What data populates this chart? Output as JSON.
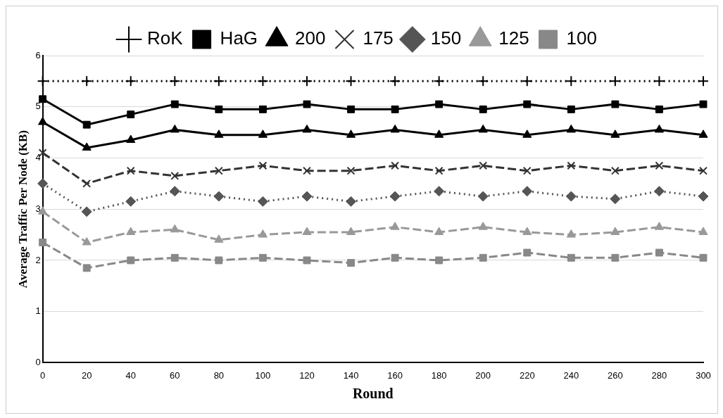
{
  "chart_data": {
    "type": "line",
    "xlabel": "Round",
    "ylabel": "Average Traffic Per Node (KB)",
    "x": [
      0,
      20,
      40,
      60,
      80,
      100,
      120,
      140,
      160,
      180,
      200,
      220,
      240,
      260,
      280,
      300
    ],
    "xlim": [
      0,
      300
    ],
    "xticks": [
      0,
      20,
      40,
      60,
      80,
      100,
      120,
      140,
      160,
      180,
      200,
      220,
      240,
      260,
      280,
      300
    ],
    "ylim": [
      0,
      6
    ],
    "yticks": [
      0,
      1,
      2,
      3,
      4,
      5,
      6
    ],
    "grid": "y",
    "legend": "top",
    "series": [
      {
        "name": "RoK",
        "color": "#000000",
        "marker": "cross",
        "line_style": "dotted",
        "values": [
          5.5,
          5.5,
          5.5,
          5.5,
          5.5,
          5.5,
          5.5,
          5.5,
          5.5,
          5.5,
          5.5,
          5.5,
          5.5,
          5.5,
          5.5,
          5.5
        ]
      },
      {
        "name": "HaG",
        "color": "#000000",
        "marker": "square",
        "line_style": "solid",
        "values": [
          5.15,
          4.65,
          4.85,
          5.05,
          4.95,
          4.95,
          5.05,
          4.95,
          4.95,
          5.05,
          4.95,
          5.05,
          4.95,
          5.05,
          4.95,
          5.05
        ]
      },
      {
        "name": "200",
        "color": "#000000",
        "marker": "triangle",
        "line_style": "solid",
        "values": [
          4.7,
          4.2,
          4.35,
          4.55,
          4.45,
          4.45,
          4.55,
          4.45,
          4.55,
          4.45,
          4.55,
          4.45,
          4.55,
          4.45,
          4.55,
          4.45
        ]
      },
      {
        "name": "175",
        "color": "#333333",
        "marker": "x",
        "line_style": "dashed",
        "values": [
          4.1,
          3.5,
          3.75,
          3.65,
          3.75,
          3.85,
          3.75,
          3.75,
          3.85,
          3.75,
          3.85,
          3.75,
          3.85,
          3.75,
          3.85,
          3.75
        ]
      },
      {
        "name": "150",
        "color": "#555555",
        "marker": "diamond",
        "line_style": "dotted",
        "values": [
          3.5,
          2.95,
          3.15,
          3.35,
          3.25,
          3.15,
          3.25,
          3.15,
          3.25,
          3.35,
          3.25,
          3.35,
          3.25,
          3.2,
          3.35,
          3.25
        ]
      },
      {
        "name": "125",
        "color": "#999999",
        "marker": "triangle",
        "line_style": "dashed",
        "values": [
          2.95,
          2.35,
          2.55,
          2.6,
          2.4,
          2.5,
          2.55,
          2.55,
          2.65,
          2.55,
          2.65,
          2.55,
          2.5,
          2.55,
          2.65,
          2.55
        ]
      },
      {
        "name": "100",
        "color": "#888888",
        "marker": "square",
        "line_style": "dashed",
        "values": [
          2.35,
          1.85,
          2.0,
          2.05,
          2.0,
          2.05,
          2.0,
          1.95,
          2.05,
          2.0,
          2.05,
          2.15,
          2.05,
          2.05,
          2.15,
          2.05
        ]
      }
    ]
  }
}
